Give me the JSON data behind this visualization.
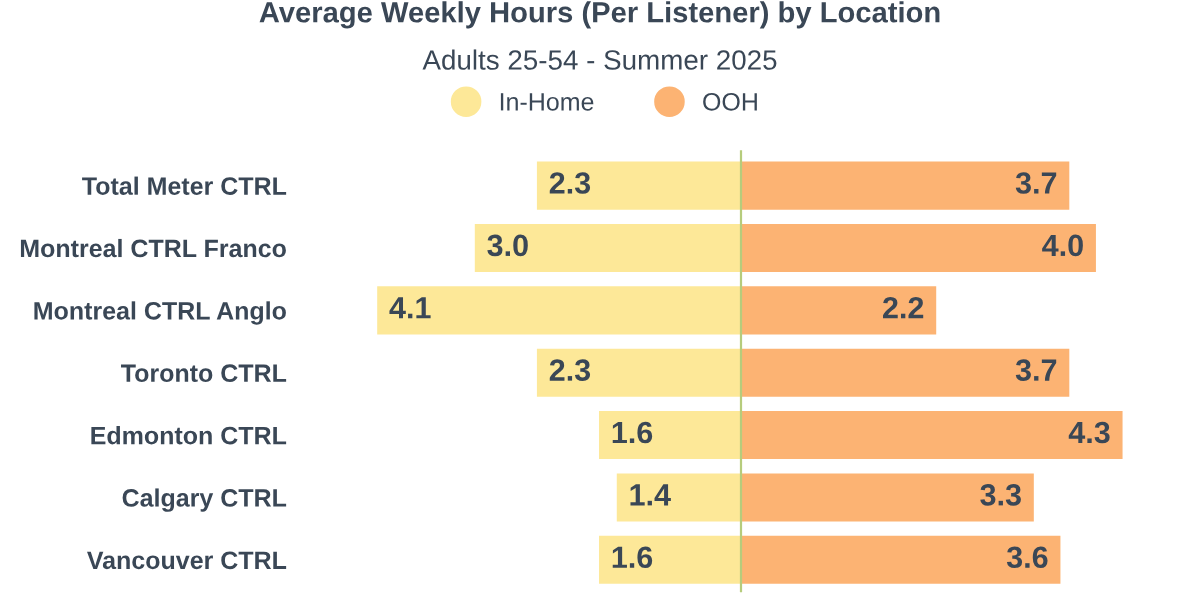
{
  "chart_data": [
    {
      "type": "bar",
      "orientation": "horizontal",
      "title": "Average Weekly Hours (Per Listener) by Location",
      "subtitle": "Adults 25-54 - Summer 2025",
      "categories": [
        "Total Meter CTRL",
        "Montreal CTRL Franco",
        "Montreal CTRL Anglo",
        "Toronto CTRL",
        "Edmonton CTRL",
        "Calgary CTRL",
        "Vancouver CTRL"
      ],
      "series": [
        {
          "name": "In-Home",
          "color": "#fde898",
          "values": [
            2.3,
            3.0,
            4.1,
            2.3,
            1.6,
            1.4,
            1.6
          ],
          "value_labels": [
            "2.3",
            "3.0",
            "4.1",
            "2.3",
            "1.6",
            "1.4",
            "1.6"
          ]
        }
      ],
      "tick_labels": "y",
      "legend": "top",
      "grid": false
    },
    {
      "type": "bar",
      "orientation": "horizontal",
      "categories": [
        null,
        null,
        null,
        null,
        null,
        null,
        null
      ],
      "series": [
        {
          "name": "OOH",
          "color": "#fcb373",
          "values": [
            3.7,
            4.0,
            2.2,
            3.7,
            4.3,
            3.3,
            3.6
          ],
          "value_labels": [
            "3.7",
            "4.0",
            "2.2",
            "3.7",
            "4.3",
            "3.3",
            "3.6"
          ]
        }
      ],
      "tick_labels": false,
      "legend": "top",
      "grid": false
    }
  ]
}
